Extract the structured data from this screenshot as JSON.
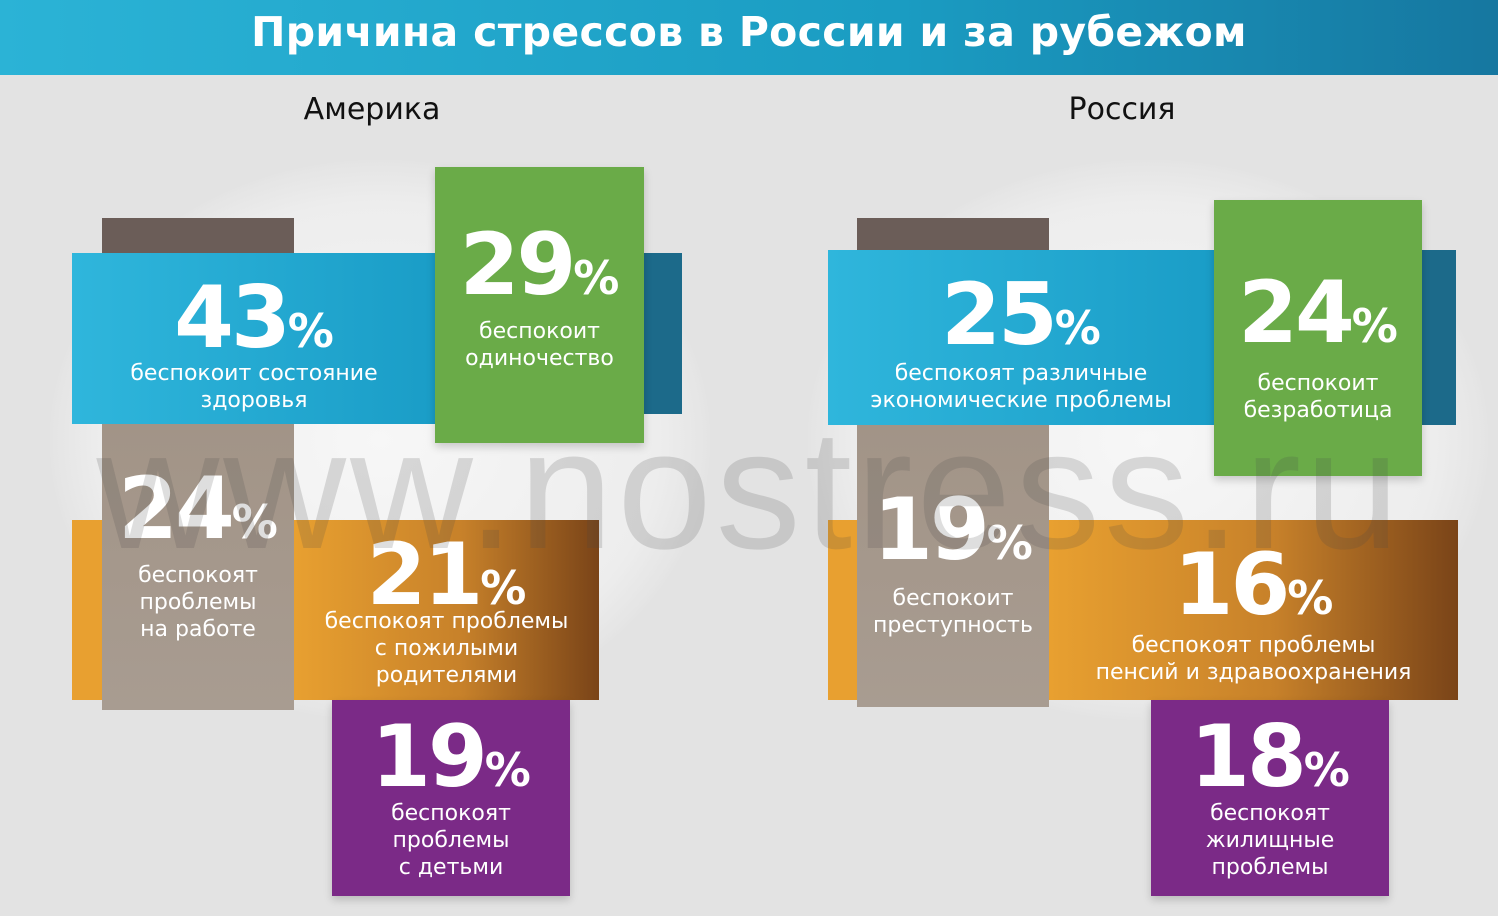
{
  "header": {
    "title": "Причина стрессов в России и за рубежом"
  },
  "watermark": "www.nostress.ru",
  "america": {
    "title": "Америка",
    "items": [
      {
        "num": "43",
        "sign": "%",
        "lines": [
          "беспокоит состояние",
          "здоровья"
        ],
        "color": "#1a9dc7"
      },
      {
        "num": "29",
        "sign": "%",
        "lines": [
          "беспокоит",
          "одиночество"
        ],
        "color": "#6aab48"
      },
      {
        "num": "24",
        "sign": "%",
        "lines": [
          "беспокоят",
          "проблемы",
          "на работе"
        ],
        "color": "#a29487"
      },
      {
        "num": "21",
        "sign": "%",
        "lines": [
          "беспокоят проблемы",
          "с пожилыми",
          "родителями"
        ],
        "color": "#e8a030"
      },
      {
        "num": "19",
        "sign": "%",
        "lines": [
          "беспокоят",
          "проблемы",
          "с детьми"
        ],
        "color": "#7b2a87"
      }
    ]
  },
  "russia": {
    "title": "Россия",
    "items": [
      {
        "num": "25",
        "sign": "%",
        "lines": [
          "беспокоят различные",
          "экономические проблемы"
        ],
        "color": "#1a9dc7"
      },
      {
        "num": "24",
        "sign": "%",
        "lines": [
          "беспокоит",
          "безработица"
        ],
        "color": "#6aab48"
      },
      {
        "num": "19",
        "sign": "%",
        "lines": [
          "беспокоит",
          "преступность"
        ],
        "color": "#a29487"
      },
      {
        "num": "16",
        "sign": "%",
        "lines": [
          "беспокоят проблемы",
          "пенсий и здравоохранения"
        ],
        "color": "#e8a030"
      },
      {
        "num": "18",
        "sign": "%",
        "lines": [
          "беспокоят",
          "жилищные",
          "проблемы"
        ],
        "color": "#7b2a87"
      }
    ]
  }
}
